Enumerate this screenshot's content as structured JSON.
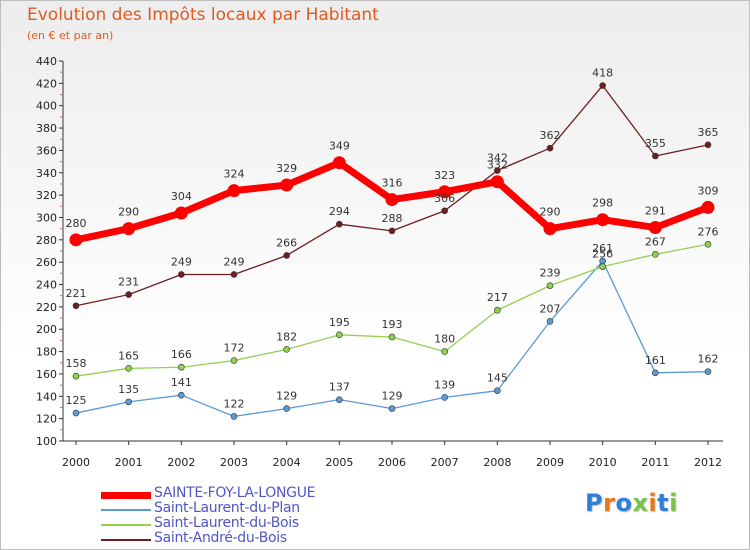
{
  "title": "Evolution des Impôts locaux par Habitant",
  "subtitle": "(en € et par an)",
  "logo_text": "Proxiti",
  "chart_data": {
    "type": "line",
    "x": [
      "2000",
      "2001",
      "2002",
      "2003",
      "2004",
      "2005",
      "2006",
      "2007",
      "2008",
      "2009",
      "2010",
      "2011",
      "2012"
    ],
    "ylim": [
      100,
      440
    ],
    "yticks": [
      100,
      120,
      140,
      160,
      180,
      200,
      220,
      240,
      260,
      280,
      300,
      320,
      340,
      360,
      380,
      400,
      420,
      440
    ],
    "grid": false,
    "legend_position": "bottom-left",
    "series": [
      {
        "name": "SAINTE-FOY-LA-LONGUE",
        "color": "#ff0000",
        "values": [
          280,
          290,
          304,
          324,
          329,
          349,
          316,
          323,
          332,
          290,
          298,
          291,
          309
        ]
      },
      {
        "name": "Saint-Laurent-du-Plan",
        "color": "#5b9bd5",
        "values": [
          125,
          135,
          141,
          122,
          129,
          137,
          129,
          139,
          145,
          207,
          261,
          161,
          162
        ]
      },
      {
        "name": "Saint-Laurent-du-Bois",
        "color": "#92d050",
        "values": [
          158,
          165,
          166,
          172,
          182,
          195,
          193,
          180,
          217,
          239,
          256,
          267,
          276
        ]
      },
      {
        "name": "Saint-André-du-Bois",
        "color": "#6d1f1f",
        "values": [
          221,
          231,
          249,
          249,
          266,
          294,
          288,
          306,
          342,
          362,
          418,
          355,
          365
        ]
      }
    ]
  }
}
